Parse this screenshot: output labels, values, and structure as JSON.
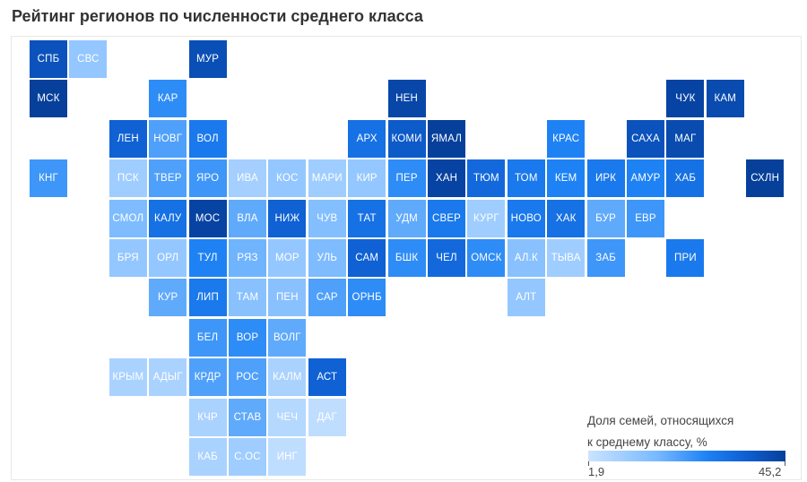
{
  "title": "Рейтинг регионов по численности среднего класса",
  "legend": {
    "line1": "Доля семей, относящихся",
    "line2": "к среднему классу, %",
    "min_label": "1,9",
    "max_label": "45,2",
    "color_min": "#cbe3ff",
    "color_max": "#063f9a"
  },
  "chart_data": {
    "type": "tile-map",
    "value_unit": "%",
    "value_range": [
      1.9,
      45.2
    ],
    "tiles": [
      {
        "label": "СПБ",
        "col": 0,
        "row": 0,
        "value": 40
      },
      {
        "label": "СВС",
        "col": 1,
        "row": 0,
        "value": 12
      },
      {
        "label": "МУР",
        "col": 4,
        "row": 0,
        "value": 41
      },
      {
        "label": "МСК",
        "col": 0,
        "row": 1,
        "value": 45
      },
      {
        "label": "КАР",
        "col": 3,
        "row": 1,
        "value": 26
      },
      {
        "label": "НЕН",
        "col": 9,
        "row": 1,
        "value": 43
      },
      {
        "label": "ЧУК",
        "col": 16,
        "row": 1,
        "value": 44
      },
      {
        "label": "КАМ",
        "col": 17,
        "row": 1,
        "value": 42
      },
      {
        "label": "ЛЕН",
        "col": 2,
        "row": 2,
        "value": 36
      },
      {
        "label": "НОВГ",
        "col": 3,
        "row": 2,
        "value": 22
      },
      {
        "label": "ВОЛ",
        "col": 4,
        "row": 2,
        "value": 30
      },
      {
        "label": "АРХ",
        "col": 8,
        "row": 2,
        "value": 32
      },
      {
        "label": "КОМИ",
        "col": 9,
        "row": 2,
        "value": 38
      },
      {
        "label": "ЯМАЛ",
        "col": 10,
        "row": 2,
        "value": 45
      },
      {
        "label": "КРАС",
        "col": 13,
        "row": 2,
        "value": 28
      },
      {
        "label": "САХА",
        "col": 15,
        "row": 2,
        "value": 40
      },
      {
        "label": "МАГ",
        "col": 16,
        "row": 2,
        "value": 42
      },
      {
        "label": "КНГ",
        "col": 0,
        "row": 3,
        "value": 24
      },
      {
        "label": "ПСК",
        "col": 2,
        "row": 3,
        "value": 10
      },
      {
        "label": "ТВЕР",
        "col": 3,
        "row": 3,
        "value": 22
      },
      {
        "label": "ЯРО",
        "col": 4,
        "row": 3,
        "value": 24
      },
      {
        "label": "ИВА",
        "col": 5,
        "row": 3,
        "value": 9
      },
      {
        "label": "КОС",
        "col": 6,
        "row": 3,
        "value": 12
      },
      {
        "label": "МАРИ",
        "col": 7,
        "row": 3,
        "value": 10
      },
      {
        "label": "КИР",
        "col": 8,
        "row": 3,
        "value": 12
      },
      {
        "label": "ПЕР",
        "col": 9,
        "row": 3,
        "value": 26
      },
      {
        "label": "ХАН",
        "col": 10,
        "row": 3,
        "value": 44
      },
      {
        "label": "ТЮМ",
        "col": 11,
        "row": 3,
        "value": 34
      },
      {
        "label": "ТОМ",
        "col": 12,
        "row": 3,
        "value": 30
      },
      {
        "label": "КЕМ",
        "col": 13,
        "row": 3,
        "value": 28
      },
      {
        "label": "ИРК",
        "col": 14,
        "row": 3,
        "value": 30
      },
      {
        "label": "АМУР",
        "col": 15,
        "row": 3,
        "value": 28
      },
      {
        "label": "ХАБ",
        "col": 16,
        "row": 3,
        "value": 32
      },
      {
        "label": "СХЛН",
        "col": 18,
        "row": 3,
        "value": 45
      },
      {
        "label": "СМОЛ",
        "col": 2,
        "row": 4,
        "value": 16
      },
      {
        "label": "КАЛУ",
        "col": 3,
        "row": 4,
        "value": 32
      },
      {
        "label": "МОС",
        "col": 4,
        "row": 4,
        "value": 44
      },
      {
        "label": "ВЛА",
        "col": 5,
        "row": 4,
        "value": 20
      },
      {
        "label": "НИЖ",
        "col": 6,
        "row": 4,
        "value": 36
      },
      {
        "label": "ЧУВ",
        "col": 7,
        "row": 4,
        "value": 15
      },
      {
        "label": "ТАТ",
        "col": 8,
        "row": 4,
        "value": 32
      },
      {
        "label": "УДМ",
        "col": 9,
        "row": 4,
        "value": 20
      },
      {
        "label": "СВЕР",
        "col": 10,
        "row": 4,
        "value": 30
      },
      {
        "label": "КУРГ",
        "col": 11,
        "row": 4,
        "value": 10
      },
      {
        "label": "НОВО",
        "col": 12,
        "row": 4,
        "value": 30
      },
      {
        "label": "ХАК",
        "col": 13,
        "row": 4,
        "value": 32
      },
      {
        "label": "БУР",
        "col": 14,
        "row": 4,
        "value": 20
      },
      {
        "label": "ЕВР",
        "col": 15,
        "row": 4,
        "value": 24
      },
      {
        "label": "БРЯ",
        "col": 2,
        "row": 5,
        "value": 12
      },
      {
        "label": "ОРЛ",
        "col": 3,
        "row": 5,
        "value": 12
      },
      {
        "label": "ТУЛ",
        "col": 4,
        "row": 5,
        "value": 28
      },
      {
        "label": "РЯЗ",
        "col": 5,
        "row": 5,
        "value": 18
      },
      {
        "label": "МОР",
        "col": 6,
        "row": 5,
        "value": 12
      },
      {
        "label": "УЛЬ",
        "col": 7,
        "row": 5,
        "value": 16
      },
      {
        "label": "САМ",
        "col": 8,
        "row": 5,
        "value": 36
      },
      {
        "label": "БШК",
        "col": 9,
        "row": 5,
        "value": 26
      },
      {
        "label": "ЧЕЛ",
        "col": 10,
        "row": 5,
        "value": 34
      },
      {
        "label": "ОМСК",
        "col": 11,
        "row": 5,
        "value": 26
      },
      {
        "label": "АЛ.К",
        "col": 12,
        "row": 5,
        "value": 14
      },
      {
        "label": "ТЫВА",
        "col": 13,
        "row": 5,
        "value": 10
      },
      {
        "label": "ЗАБ",
        "col": 14,
        "row": 5,
        "value": 24
      },
      {
        "label": "ПРИ",
        "col": 16,
        "row": 5,
        "value": 30
      },
      {
        "label": "КУР",
        "col": 3,
        "row": 6,
        "value": 20
      },
      {
        "label": "ЛИП",
        "col": 4,
        "row": 6,
        "value": 30
      },
      {
        "label": "ТАМ",
        "col": 5,
        "row": 6,
        "value": 14
      },
      {
        "label": "ПЕН",
        "col": 6,
        "row": 6,
        "value": 14
      },
      {
        "label": "САР",
        "col": 7,
        "row": 6,
        "value": 22
      },
      {
        "label": "ОРНБ",
        "col": 8,
        "row": 6,
        "value": 26
      },
      {
        "label": "АЛТ",
        "col": 12,
        "row": 6,
        "value": 12
      },
      {
        "label": "БЕЛ",
        "col": 4,
        "row": 7,
        "value": 24
      },
      {
        "label": "ВОР",
        "col": 5,
        "row": 7,
        "value": 26
      },
      {
        "label": "ВОЛГ",
        "col": 6,
        "row": 7,
        "value": 20
      },
      {
        "label": "КРЫМ",
        "col": 2,
        "row": 8,
        "value": 8
      },
      {
        "label": "АДЫГ",
        "col": 3,
        "row": 8,
        "value": 8
      },
      {
        "label": "КРДР",
        "col": 4,
        "row": 8,
        "value": 22
      },
      {
        "label": "РОС",
        "col": 5,
        "row": 8,
        "value": 22
      },
      {
        "label": "КАЛМ",
        "col": 6,
        "row": 8,
        "value": 8
      },
      {
        "label": "АСТ",
        "col": 7,
        "row": 8,
        "value": 36
      },
      {
        "label": "КЧР",
        "col": 4,
        "row": 9,
        "value": 8
      },
      {
        "label": "СТАВ",
        "col": 5,
        "row": 9,
        "value": 20
      },
      {
        "label": "ЧЕЧ",
        "col": 6,
        "row": 9,
        "value": 6
      },
      {
        "label": "ДАГ",
        "col": 7,
        "row": 9,
        "value": 4
      },
      {
        "label": "КАБ",
        "col": 4,
        "row": 10,
        "value": 8
      },
      {
        "label": "С.ОС",
        "col": 5,
        "row": 10,
        "value": 10
      },
      {
        "label": "ИНГ",
        "col": 6,
        "row": 10,
        "value": 4
      }
    ]
  }
}
